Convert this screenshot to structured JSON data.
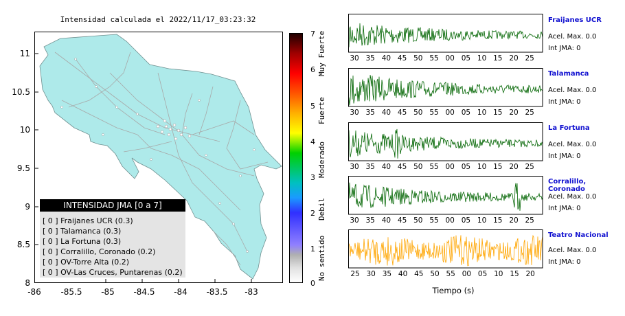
{
  "map": {
    "title": "Intensidad calculada el 2022/11/17_03:23:32",
    "fill_color": "#aeeaea",
    "x_ticks": [
      "-86",
      "-85.5",
      "-85",
      "-84.5",
      "-84",
      "-83.5",
      "-83"
    ],
    "y_ticks": [
      "11",
      "10.5",
      "10",
      "9.5",
      "9",
      "8.5",
      "8"
    ]
  },
  "legend": {
    "header": "INTENSIDAD JMA [0 a 7]",
    "rows": [
      "[ 0 ] Fraijanes UCR (0.3)",
      "[ 0 ] Talamanca (0.3)",
      "[ 0 ] La Fortuna (0.3)",
      "[ 0 ] Corralillo, Coronado (0.2)",
      "[ 0 ] OV-Torre Alta (0.2)",
      "[ 0 ] OV-Las Cruces, Puntarenas (0.2)"
    ]
  },
  "colorbar": {
    "numbers": [
      "7",
      "6",
      "5",
      "4",
      "3",
      "2",
      "1",
      "0"
    ],
    "labels": [
      "Muy Fuerte",
      "Fuerte",
      "Moderado",
      "Debil",
      "No sentido"
    ]
  },
  "stations": [
    {
      "name": "Fraijanes UCR",
      "accel": "Acel. Max. 0.0",
      "int": "Int JMA: 0",
      "color": "#006400",
      "ticks": [
        "30",
        "35",
        "40",
        "45",
        "50",
        "55",
        "00",
        "05",
        "10",
        "15",
        "20",
        "25"
      ]
    },
    {
      "name": "Talamanca",
      "accel": "Acel. Max. 0.0",
      "int": "Int JMA: 0",
      "color": "#006400",
      "ticks": [
        "30",
        "35",
        "40",
        "45",
        "50",
        "55",
        "00",
        "05",
        "10",
        "15",
        "20",
        "25"
      ]
    },
    {
      "name": "La Fortuna",
      "accel": "Acel. Max. 0.0",
      "int": "Int JMA: 0",
      "color": "#006400",
      "ticks": [
        "30",
        "35",
        "40",
        "45",
        "50",
        "55",
        "00",
        "05",
        "10",
        "15",
        "20",
        "25"
      ]
    },
    {
      "name": "Corralillo, Coronado",
      "accel": "Acel. Max. 0.0",
      "int": "Int JMA: 0",
      "color": "#006400",
      "ticks": [
        "30",
        "35",
        "40",
        "45",
        "50",
        "55",
        "00",
        "05",
        "10",
        "15",
        "20",
        "25"
      ]
    },
    {
      "name": "Teatro Nacional",
      "accel": "Acel. Max. 0.0",
      "int": "Int JMA: 0",
      "color": "#ffa500",
      "ticks": [
        "25",
        "30",
        "35",
        "40",
        "45",
        "50",
        "55",
        "00",
        "05",
        "10",
        "15",
        "20"
      ]
    }
  ],
  "time_axis_label": "Tiempo (s)"
}
